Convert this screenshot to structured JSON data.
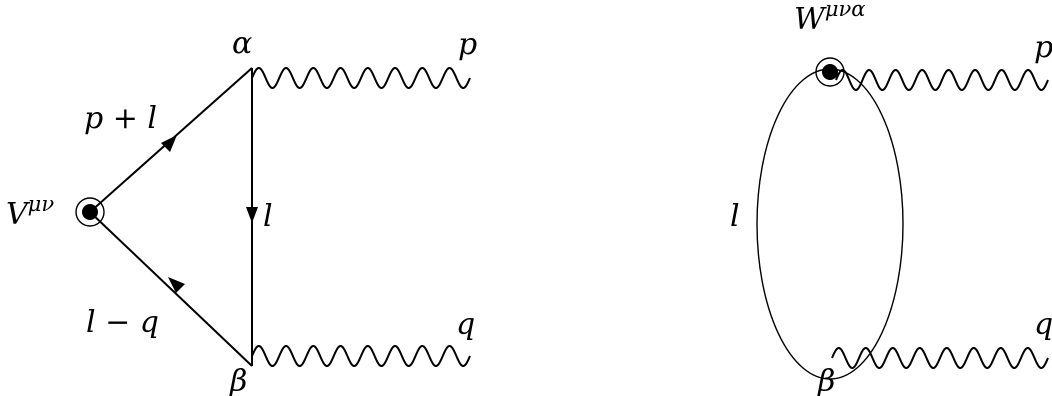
{
  "diagram": {
    "triangle": {
      "vertex_label": "V",
      "vertex_label_sup": "μν",
      "upper_edge_label": "p + l",
      "lower_edge_label": "l − q",
      "right_edge_label": "l",
      "top_vertex_label": "α",
      "bottom_vertex_label": "β",
      "top_photon_label": "p",
      "bottom_photon_label": "q"
    },
    "bubble": {
      "vertex_label": "W",
      "vertex_label_sup": "μνα",
      "loop_label": "l",
      "bottom_vertex_label": "β",
      "top_photon_label": "p",
      "bottom_photon_label": "q"
    }
  }
}
